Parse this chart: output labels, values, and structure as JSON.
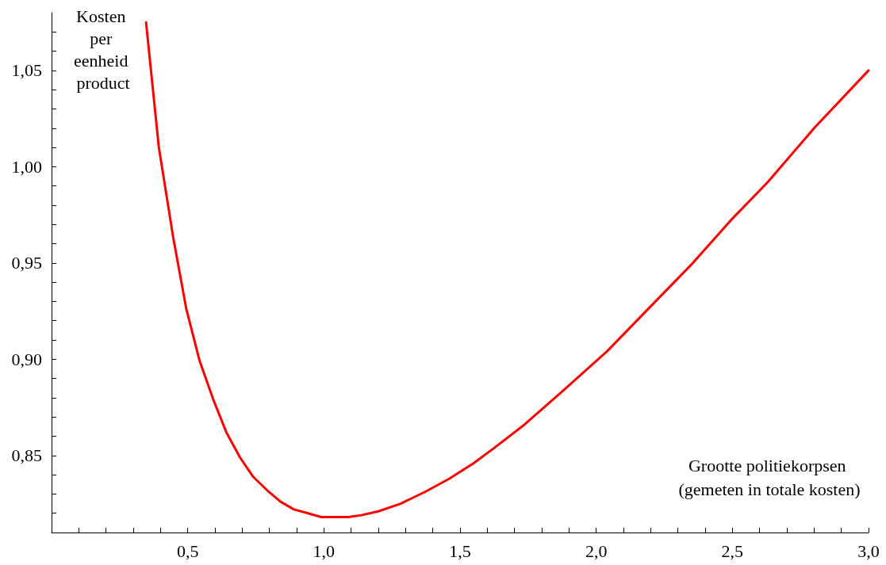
{
  "chart_data": {
    "type": "line",
    "xlabel": "Grootte politiekorpsen (gemeten in totale kosten)",
    "ylabel": "Kosten per eenheid product",
    "x": [
      0.347,
      0.394,
      0.447,
      0.495,
      0.544,
      0.594,
      0.642,
      0.692,
      0.74,
      0.791,
      0.841,
      0.89,
      0.942,
      0.99,
      1.041,
      1.09,
      1.138,
      1.2,
      1.282,
      1.37,
      1.461,
      1.55,
      1.626,
      1.736,
      1.873,
      2.039,
      2.19,
      2.355,
      2.493,
      2.63,
      2.8,
      3.0
    ],
    "series": [
      {
        "color": "#ff0000",
        "values": [
          1.075,
          1.01,
          0.963,
          0.926,
          0.899,
          0.879,
          0.862,
          0.849,
          0.839,
          0.832,
          0.826,
          0.822,
          0.82,
          0.818,
          0.818,
          0.818,
          0.819,
          0.821,
          0.825,
          0.831,
          0.838,
          0.846,
          0.854,
          0.866,
          0.883,
          0.904,
          0.926,
          0.95,
          0.972,
          0.992,
          1.02,
          1.05
        ]
      }
    ],
    "xlim": [
      0,
      3.0
    ],
    "xticks": [
      {
        "value": 0.1,
        "label": null
      },
      {
        "value": 0.2,
        "label": null
      },
      {
        "value": 0.3,
        "label": null
      },
      {
        "value": 0.4,
        "label": null
      },
      {
        "value": 0.5,
        "label": "0,5"
      },
      {
        "value": 0.6,
        "label": null
      },
      {
        "value": 0.7,
        "label": null
      },
      {
        "value": 0.8,
        "label": null
      },
      {
        "value": 0.9,
        "label": null
      },
      {
        "value": 1.0,
        "label": "1,0"
      },
      {
        "value": 1.1,
        "label": null
      },
      {
        "value": 1.2,
        "label": null
      },
      {
        "value": 1.3,
        "label": null
      },
      {
        "value": 1.4,
        "label": null
      },
      {
        "value": 1.5,
        "label": "1,5"
      },
      {
        "value": 1.6,
        "label": null
      },
      {
        "value": 1.7,
        "label": null
      },
      {
        "value": 1.8,
        "label": null
      },
      {
        "value": 1.9,
        "label": null
      },
      {
        "value": 2.0,
        "label": "2,0"
      },
      {
        "value": 2.1,
        "label": null
      },
      {
        "value": 2.2,
        "label": null
      },
      {
        "value": 2.3,
        "label": null
      },
      {
        "value": 2.4,
        "label": null
      },
      {
        "value": 2.5,
        "label": "2,5"
      },
      {
        "value": 2.6,
        "label": null
      },
      {
        "value": 2.7,
        "label": null
      },
      {
        "value": 2.8,
        "label": null
      },
      {
        "value": 2.9,
        "label": null
      },
      {
        "value": 3.0,
        "label": "3,0"
      }
    ],
    "ylim": [
      0.81,
      1.08
    ],
    "yticks": [
      {
        "value": 0.82,
        "label": null
      },
      {
        "value": 0.83,
        "label": null
      },
      {
        "value": 0.84,
        "label": null
      },
      {
        "value": 0.85,
        "label": "0,85"
      },
      {
        "value": 0.86,
        "label": null
      },
      {
        "value": 0.87,
        "label": null
      },
      {
        "value": 0.88,
        "label": null
      },
      {
        "value": 0.89,
        "label": null
      },
      {
        "value": 0.9,
        "label": "0,90"
      },
      {
        "value": 0.91,
        "label": null
      },
      {
        "value": 0.92,
        "label": null
      },
      {
        "value": 0.93,
        "label": null
      },
      {
        "value": 0.94,
        "label": null
      },
      {
        "value": 0.95,
        "label": "0,95"
      },
      {
        "value": 0.96,
        "label": null
      },
      {
        "value": 0.97,
        "label": null
      },
      {
        "value": 0.98,
        "label": null
      },
      {
        "value": 0.99,
        "label": null
      },
      {
        "value": 1.0,
        "label": "1,00"
      },
      {
        "value": 1.01,
        "label": null
      },
      {
        "value": 1.02,
        "label": null
      },
      {
        "value": 1.03,
        "label": null
      },
      {
        "value": 1.04,
        "label": null
      },
      {
        "value": 1.05,
        "label": "1,05"
      },
      {
        "value": 1.06,
        "label": null
      },
      {
        "value": 1.07,
        "label": null
      }
    ],
    "grid": false,
    "marker": "none",
    "line_style": "solid"
  }
}
